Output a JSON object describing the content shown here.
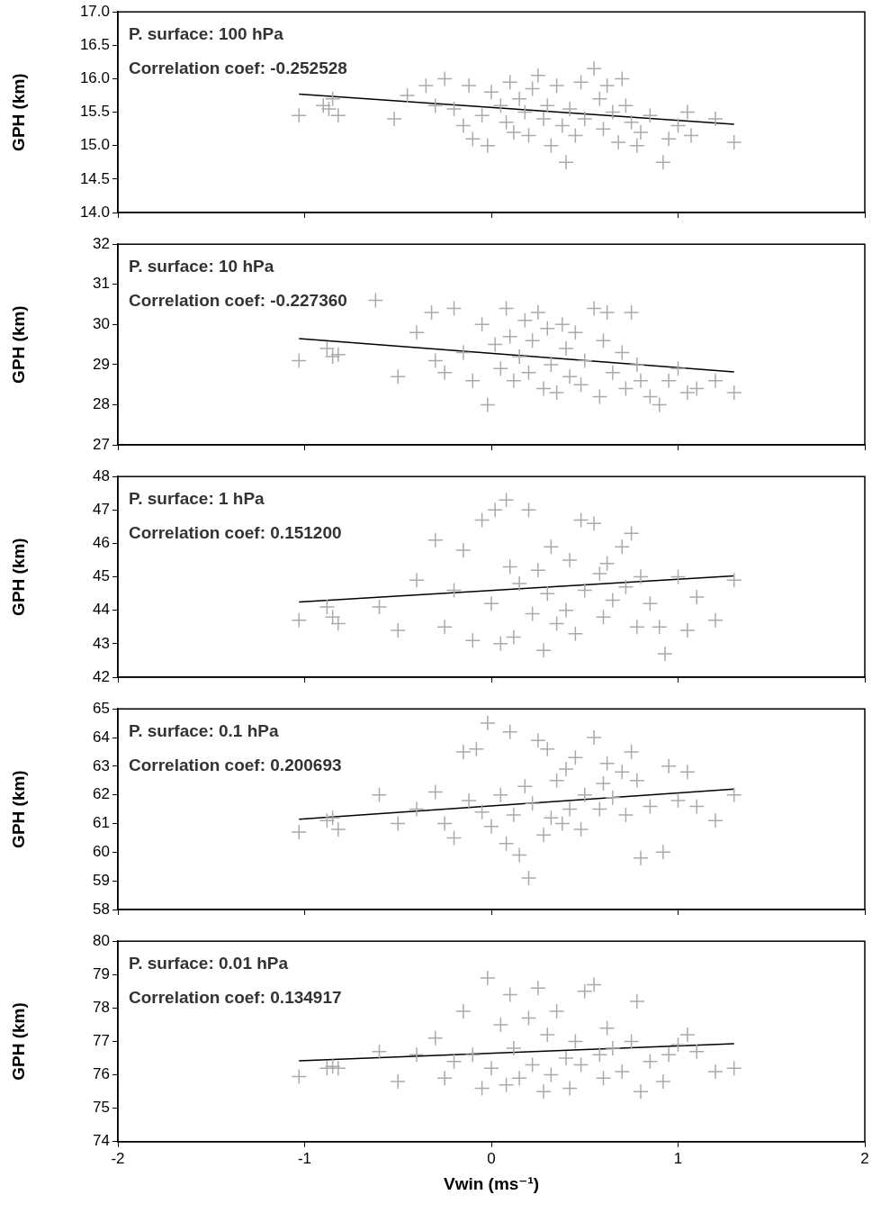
{
  "chart_data": [
    {
      "type": "scatter",
      "annotations": [
        "P. surface: 100 hPa",
        "Correlation coef: -0.252528"
      ],
      "y_label": "GPH (km)",
      "grid": false,
      "tick_labels": "y",
      "xlim": [
        -2,
        2
      ],
      "xticks": [
        -2,
        -1,
        0,
        1,
        2
      ],
      "ylim": [
        14,
        17
      ],
      "yticks": [
        {
          "value": 14,
          "label": "14.0"
        },
        {
          "value": 14.5,
          "label": "14.5"
        },
        {
          "value": 15,
          "label": "15.0"
        },
        {
          "value": 15.5,
          "label": "15.5"
        },
        {
          "value": 16,
          "label": "16.0"
        },
        {
          "value": 16.5,
          "label": "16.5"
        },
        {
          "value": 17,
          "label": "17.0"
        }
      ],
      "series": [
        {
          "type": "scatter",
          "marker": "plus",
          "color": "#aaaaaa",
          "x": [
            -1.03,
            -0.9,
            -0.87,
            -0.85,
            -0.82,
            -0.52,
            -0.45,
            -0.35,
            -0.3,
            -0.25,
            -0.2,
            -0.15,
            -0.12,
            -0.1,
            -0.05,
            -0.02,
            0.0,
            0.05,
            0.08,
            0.1,
            0.12,
            0.15,
            0.18,
            0.2,
            0.22,
            0.25,
            0.28,
            0.3,
            0.32,
            0.35,
            0.38,
            0.4,
            0.42,
            0.45,
            0.48,
            0.5,
            0.55,
            0.58,
            0.6,
            0.62,
            0.65,
            0.68,
            0.7,
            0.72,
            0.75,
            0.78,
            0.8,
            0.85,
            0.92,
            0.95,
            1.0,
            1.05,
            1.07,
            1.2,
            1.3
          ],
          "values": [
            15.45,
            15.6,
            15.55,
            15.7,
            15.45,
            15.4,
            15.75,
            15.9,
            15.6,
            16.0,
            15.55,
            15.3,
            15.9,
            15.1,
            15.45,
            15.0,
            15.8,
            15.6,
            15.35,
            15.95,
            15.2,
            15.7,
            15.5,
            15.15,
            15.85,
            16.05,
            15.4,
            15.6,
            15.0,
            15.9,
            15.3,
            14.75,
            15.55,
            15.15,
            15.95,
            15.4,
            16.15,
            15.7,
            15.25,
            15.9,
            15.5,
            15.05,
            16.0,
            15.6,
            15.35,
            15.0,
            15.2,
            15.45,
            14.75,
            15.1,
            15.3,
            15.5,
            15.15,
            15.4,
            15.05
          ]
        },
        {
          "type": "line",
          "line_style": "solid",
          "color": "#000000",
          "x": [
            -1.03,
            1.3
          ],
          "values": [
            15.77,
            15.32
          ]
        }
      ]
    },
    {
      "type": "scatter",
      "annotations": [
        "P. surface: 10 hPa",
        "Correlation coef: -0.227360"
      ],
      "y_label": "GPH (km)",
      "grid": false,
      "tick_labels": "y",
      "xlim": [
        -2,
        2
      ],
      "xticks": [
        -2,
        -1,
        0,
        1,
        2
      ],
      "ylim": [
        27,
        32
      ],
      "yticks": [
        27,
        28,
        29,
        30,
        31,
        32
      ],
      "series": [
        {
          "type": "scatter",
          "marker": "plus",
          "color": "#aaaaaa",
          "x": [
            -1.03,
            -0.88,
            -0.85,
            -0.82,
            -0.62,
            -0.5,
            -0.4,
            -0.32,
            -0.3,
            -0.25,
            -0.2,
            -0.15,
            -0.1,
            -0.05,
            -0.02,
            0.02,
            0.05,
            0.08,
            0.1,
            0.12,
            0.15,
            0.18,
            0.2,
            0.22,
            0.25,
            0.28,
            0.3,
            0.32,
            0.35,
            0.38,
            0.4,
            0.42,
            0.45,
            0.48,
            0.5,
            0.55,
            0.58,
            0.6,
            0.62,
            0.65,
            0.7,
            0.72,
            0.75,
            0.78,
            0.8,
            0.85,
            0.9,
            0.95,
            1.0,
            1.05,
            1.1,
            1.2,
            1.3
          ],
          "values": [
            29.1,
            29.4,
            29.2,
            29.25,
            30.6,
            28.7,
            29.8,
            30.3,
            29.1,
            28.8,
            30.4,
            29.3,
            28.6,
            30.0,
            28.0,
            29.5,
            28.9,
            30.4,
            29.7,
            28.6,
            29.2,
            30.1,
            28.8,
            29.6,
            30.3,
            28.4,
            29.9,
            29.0,
            28.3,
            30.0,
            29.4,
            28.7,
            29.8,
            28.5,
            29.1,
            30.4,
            28.2,
            29.6,
            30.3,
            28.8,
            29.3,
            28.4,
            30.3,
            29.0,
            28.6,
            28.2,
            28.0,
            28.6,
            28.9,
            28.3,
            28.4,
            28.6,
            28.3
          ]
        },
        {
          "type": "line",
          "line_style": "solid",
          "color": "#000000",
          "x": [
            -1.03,
            1.3
          ],
          "values": [
            29.65,
            28.82
          ]
        }
      ]
    },
    {
      "type": "scatter",
      "annotations": [
        "P. surface: 1 hPa",
        "Correlation coef: 0.151200"
      ],
      "y_label": "GPH (km)",
      "grid": false,
      "tick_labels": "y",
      "xlim": [
        -2,
        2
      ],
      "xticks": [
        -2,
        -1,
        0,
        1,
        2
      ],
      "ylim": [
        42,
        48
      ],
      "yticks": [
        42,
        43,
        44,
        45,
        46,
        47,
        48
      ],
      "series": [
        {
          "type": "scatter",
          "marker": "plus",
          "color": "#aaaaaa",
          "x": [
            -1.03,
            -0.88,
            -0.85,
            -0.82,
            -0.6,
            -0.5,
            -0.4,
            -0.3,
            -0.25,
            -0.2,
            -0.15,
            -0.1,
            -0.05,
            0.0,
            0.02,
            0.05,
            0.08,
            0.1,
            0.12,
            0.15,
            0.2,
            0.22,
            0.25,
            0.28,
            0.3,
            0.32,
            0.35,
            0.4,
            0.42,
            0.45,
            0.48,
            0.5,
            0.55,
            0.58,
            0.6,
            0.62,
            0.65,
            0.7,
            0.72,
            0.75,
            0.78,
            0.8,
            0.85,
            0.9,
            0.93,
            1.0,
            1.05,
            1.1,
            1.2,
            1.3
          ],
          "values": [
            43.7,
            44.1,
            43.8,
            43.6,
            44.1,
            43.4,
            44.9,
            46.1,
            43.5,
            44.6,
            45.8,
            43.1,
            46.7,
            44.2,
            47.0,
            43.0,
            47.3,
            45.3,
            43.2,
            44.8,
            47.0,
            43.9,
            45.2,
            42.8,
            44.5,
            45.9,
            43.6,
            44.0,
            45.5,
            43.3,
            46.7,
            44.6,
            46.6,
            45.1,
            43.8,
            45.4,
            44.3,
            45.9,
            44.7,
            46.3,
            43.5,
            45.0,
            44.2,
            43.5,
            42.7,
            45.0,
            43.4,
            44.4,
            43.7,
            44.9
          ]
        },
        {
          "type": "line",
          "line_style": "solid",
          "color": "#000000",
          "x": [
            -1.03,
            1.3
          ],
          "values": [
            44.25,
            45.03
          ]
        }
      ]
    },
    {
      "type": "scatter",
      "annotations": [
        "P. surface: 0.1 hPa",
        "Correlation coef: 0.200693"
      ],
      "y_label": "GPH (km)",
      "grid": false,
      "tick_labels": "y",
      "xlim": [
        -2,
        2
      ],
      "xticks": [
        -2,
        -1,
        0,
        1,
        2
      ],
      "ylim": [
        58,
        65
      ],
      "yticks": [
        58,
        59,
        60,
        61,
        62,
        63,
        64,
        65
      ],
      "series": [
        {
          "type": "scatter",
          "marker": "plus",
          "color": "#aaaaaa",
          "x": [
            -1.03,
            -0.88,
            -0.85,
            -0.82,
            -0.6,
            -0.5,
            -0.4,
            -0.3,
            -0.25,
            -0.2,
            -0.15,
            -0.12,
            -0.08,
            -0.05,
            -0.02,
            0.0,
            0.05,
            0.08,
            0.1,
            0.12,
            0.15,
            0.18,
            0.2,
            0.22,
            0.25,
            0.28,
            0.3,
            0.32,
            0.35,
            0.38,
            0.4,
            0.42,
            0.45,
            0.48,
            0.5,
            0.55,
            0.58,
            0.6,
            0.62,
            0.65,
            0.7,
            0.72,
            0.75,
            0.78,
            0.8,
            0.85,
            0.92,
            0.95,
            1.0,
            1.05,
            1.1,
            1.2,
            1.3
          ],
          "values": [
            60.7,
            61.1,
            61.2,
            60.8,
            62.0,
            61.0,
            61.5,
            62.1,
            61.0,
            60.5,
            63.5,
            61.8,
            63.6,
            61.4,
            64.5,
            60.9,
            62.0,
            60.3,
            64.2,
            61.3,
            59.9,
            62.3,
            59.1,
            61.7,
            63.9,
            60.6,
            63.6,
            61.2,
            62.5,
            61.0,
            62.9,
            61.5,
            63.3,
            60.8,
            62.0,
            64.0,
            61.5,
            62.4,
            63.1,
            61.9,
            62.8,
            61.3,
            63.5,
            62.5,
            59.8,
            61.6,
            60.0,
            63.0,
            61.8,
            62.8,
            61.6,
            61.1,
            62.0
          ]
        },
        {
          "type": "line",
          "line_style": "solid",
          "color": "#000000",
          "x": [
            -1.03,
            1.3
          ],
          "values": [
            61.15,
            62.2
          ]
        }
      ]
    },
    {
      "type": "scatter",
      "annotations": [
        "P. surface: 0.01 hPa",
        "Correlation coef: 0.134917"
      ],
      "y_label": "GPH (km)",
      "x_label": "Vwin (ms⁻¹)",
      "grid": false,
      "xlim": [
        -2,
        2
      ],
      "xticks": [
        -2,
        -1,
        0,
        1,
        2
      ],
      "ylim": [
        74,
        80
      ],
      "yticks": [
        74,
        75,
        76,
        77,
        78,
        79,
        80
      ],
      "series": [
        {
          "type": "scatter",
          "marker": "plus",
          "color": "#aaaaaa",
          "x": [
            -1.03,
            -0.88,
            -0.85,
            -0.82,
            -0.6,
            -0.5,
            -0.4,
            -0.3,
            -0.25,
            -0.2,
            -0.15,
            -0.1,
            -0.05,
            -0.02,
            0.0,
            0.05,
            0.08,
            0.1,
            0.12,
            0.15,
            0.2,
            0.22,
            0.25,
            0.28,
            0.3,
            0.32,
            0.35,
            0.4,
            0.42,
            0.45,
            0.48,
            0.5,
            0.55,
            0.58,
            0.6,
            0.62,
            0.65,
            0.7,
            0.75,
            0.78,
            0.8,
            0.85,
            0.92,
            0.95,
            1.0,
            1.05,
            1.1,
            1.2,
            1.3
          ],
          "values": [
            75.95,
            76.2,
            76.25,
            76.2,
            76.7,
            75.8,
            76.6,
            77.1,
            75.9,
            76.4,
            77.9,
            76.6,
            75.6,
            78.9,
            76.2,
            77.5,
            75.7,
            78.4,
            76.8,
            75.9,
            77.7,
            76.3,
            78.6,
            75.5,
            77.2,
            76.0,
            77.9,
            76.5,
            75.6,
            77.0,
            76.3,
            78.5,
            78.7,
            76.6,
            75.9,
            77.4,
            76.8,
            76.1,
            77.0,
            78.2,
            75.5,
            76.4,
            75.8,
            76.6,
            76.9,
            77.2,
            76.7,
            76.1,
            76.2
          ]
        },
        {
          "type": "line",
          "line_style": "solid",
          "color": "#000000",
          "x": [
            -1.03,
            1.3
          ],
          "values": [
            76.42,
            76.93
          ]
        }
      ]
    }
  ]
}
